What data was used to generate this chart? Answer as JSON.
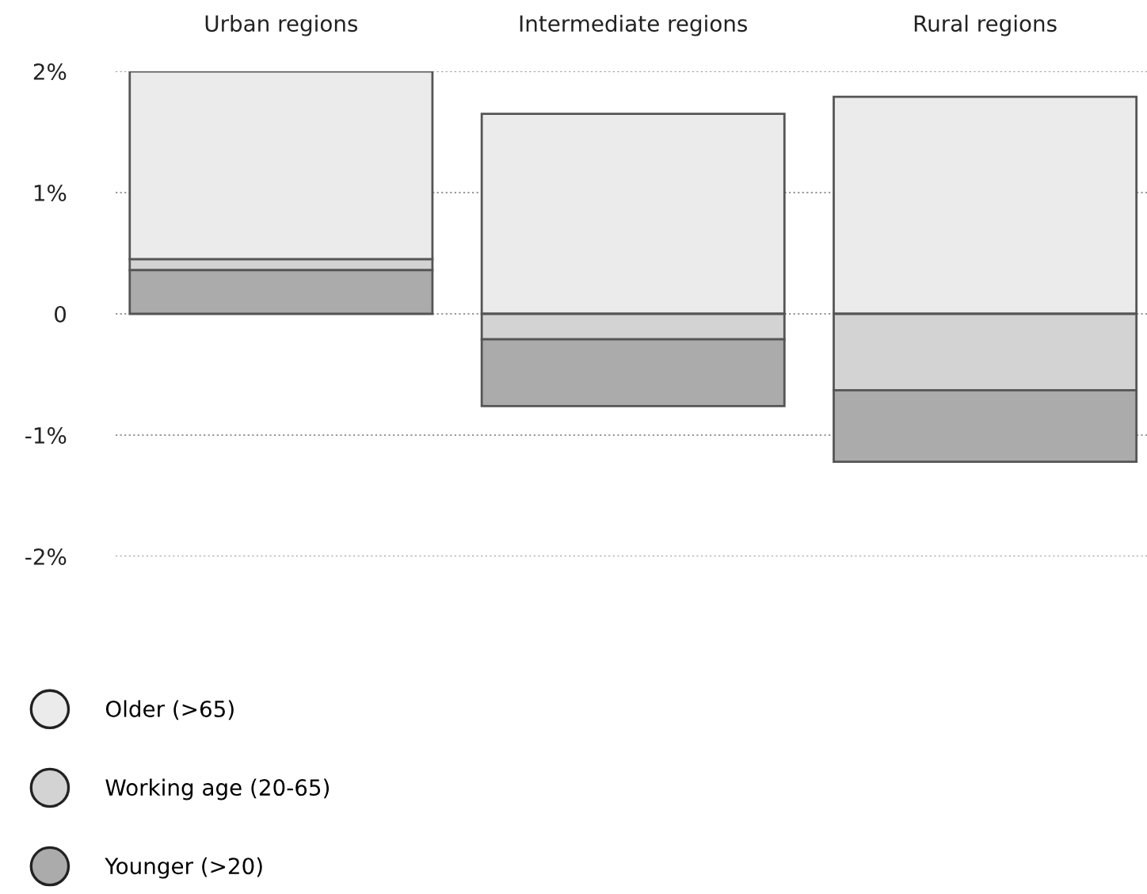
{
  "chart_data": {
    "type": "bar",
    "categories": [
      "Urban regions",
      "Intermediate regions",
      "Rural regions"
    ],
    "series": [
      {
        "name": "Older (>65)",
        "color": "#ebebeb",
        "base": [
          0.45,
          0,
          0
        ],
        "values": [
          1.55,
          1.65,
          1.79
        ]
      },
      {
        "name": "Working age (20-65)",
        "color": "#d3d3d3",
        "base": [
          0.36,
          0,
          0
        ],
        "values": [
          0.09,
          -0.21,
          -0.63
        ]
      },
      {
        "name": "Younger (>20)",
        "color": "#ababab",
        "base": [
          0,
          -0.21,
          -0.63
        ],
        "values": [
          0.36,
          -0.55,
          -0.59
        ]
      }
    ],
    "ylim": [
      -2,
      2
    ],
    "yticks": [
      {
        "value": 2,
        "label": "2%"
      },
      {
        "value": 1,
        "label": "1%"
      },
      0,
      {
        "value": -1,
        "label": "-1%"
      },
      {
        "value": -2,
        "label": "-2%"
      }
    ],
    "grid": "y",
    "legend": "bottom left"
  }
}
